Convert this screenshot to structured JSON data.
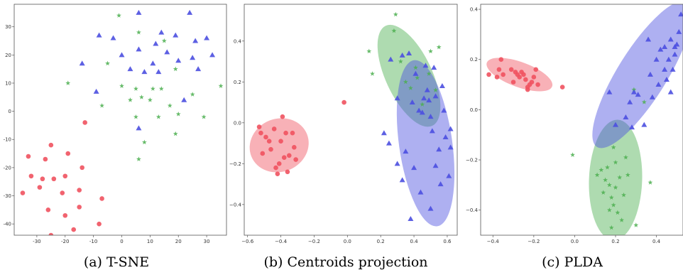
{
  "colors": {
    "red": "#f0525f",
    "green": "#4caf50",
    "blue": "#4b4fe0"
  },
  "chart_data": [
    {
      "type": "scatter",
      "caption": "(a) T-SNE",
      "xlim": [
        -38,
        37
      ],
      "ylim": [
        -44,
        38
      ],
      "xticks": [
        -30,
        -20,
        -10,
        0,
        10,
        20,
        30
      ],
      "yticks": [
        -40,
        -30,
        -20,
        -10,
        0,
        10,
        20,
        30
      ],
      "ellipses": [],
      "series": [
        {
          "marker": "circle",
          "color": "red",
          "points": [
            [
              -35,
              -29
            ],
            [
              -33,
              -16
            ],
            [
              -32,
              -23
            ],
            [
              -29,
              -27
            ],
            [
              -28,
              -24
            ],
            [
              -27,
              -17
            ],
            [
              -26,
              -35
            ],
            [
              -25,
              -12
            ],
            [
              -25,
              -44
            ],
            [
              -24,
              -24
            ],
            [
              -21,
              -29
            ],
            [
              -20,
              -23
            ],
            [
              -20,
              -37
            ],
            [
              -19,
              -15
            ],
            [
              -17,
              -42
            ],
            [
              -15,
              -34
            ],
            [
              -15,
              -28
            ],
            [
              -14,
              -20
            ],
            [
              -8,
              -40
            ],
            [
              -7,
              -31
            ],
            [
              -13,
              -4
            ]
          ]
        },
        {
          "marker": "star",
          "color": "green",
          "points": [
            [
              -19,
              10
            ],
            [
              -7,
              2
            ],
            [
              -5,
              17
            ],
            [
              -1,
              34
            ],
            [
              0,
              9
            ],
            [
              3,
              4
            ],
            [
              5,
              8
            ],
            [
              5,
              -2
            ],
            [
              6,
              28
            ],
            [
              6,
              -17
            ],
            [
              7,
              5
            ],
            [
              8,
              -11
            ],
            [
              10,
              4
            ],
            [
              11,
              8
            ],
            [
              13,
              -2
            ],
            [
              14,
              8
            ],
            [
              15,
              25
            ],
            [
              17,
              2
            ],
            [
              19,
              15
            ],
            [
              19,
              -8
            ],
            [
              20,
              -1
            ],
            [
              25,
              6
            ],
            [
              29,
              -2
            ],
            [
              35,
              9
            ]
          ]
        },
        {
          "marker": "triangle",
          "color": "blue",
          "points": [
            [
              -14,
              17
            ],
            [
              -9,
              7
            ],
            [
              -8,
              27
            ],
            [
              -3,
              26
            ],
            [
              0,
              20
            ],
            [
              3,
              15
            ],
            [
              6,
              35
            ],
            [
              6,
              22
            ],
            [
              6,
              -6
            ],
            [
              8,
              14
            ],
            [
              11,
              17
            ],
            [
              12,
              24
            ],
            [
              13,
              14
            ],
            [
              14,
              28
            ],
            [
              16,
              21
            ],
            [
              19,
              27
            ],
            [
              20,
              18
            ],
            [
              22,
              4
            ],
            [
              24,
              35
            ],
            [
              25,
              19
            ],
            [
              26,
              25
            ],
            [
              27,
              15
            ],
            [
              30,
              26
            ],
            [
              32,
              20
            ]
          ]
        }
      ]
    },
    {
      "type": "scatter",
      "caption": "(b) Centroids projection",
      "xlim": [
        -0.62,
        0.66
      ],
      "ylim": [
        -0.55,
        0.58
      ],
      "xticks": [
        -0.6,
        -0.4,
        -0.2,
        0.0,
        0.2,
        0.4,
        0.6
      ],
      "xtick_labels": [
        "−0.6",
        "−0.4",
        "−0.2",
        "0.0",
        "0.2",
        "0.4",
        "0.6"
      ],
      "yticks": [
        -0.4,
        -0.2,
        0.0,
        0.2,
        0.4
      ],
      "ytick_labels": [
        "−0.4",
        "−0.2",
        "0.0",
        "0.2",
        "0.4"
      ],
      "ellipses": [
        {
          "color": "red",
          "cx": -0.41,
          "cy": -0.11,
          "rx": 0.18,
          "ry": 0.13,
          "angle": 22
        },
        {
          "color": "green",
          "cx": 0.37,
          "cy": 0.23,
          "rx": 0.14,
          "ry": 0.27,
          "angle": 25
        },
        {
          "color": "blue",
          "cx": 0.47,
          "cy": -0.1,
          "rx": 0.16,
          "ry": 0.41,
          "angle": 8
        }
      ],
      "series": [
        {
          "marker": "circle",
          "color": "red",
          "points": [
            [
              -0.53,
              -0.02
            ],
            [
              -0.52,
              -0.05
            ],
            [
              -0.51,
              -0.15
            ],
            [
              -0.49,
              -0.07
            ],
            [
              -0.47,
              -0.09
            ],
            [
              -0.46,
              -0.13
            ],
            [
              -0.44,
              -0.03
            ],
            [
              -0.43,
              -0.22
            ],
            [
              -0.42,
              -0.25
            ],
            [
              -0.41,
              -0.2
            ],
            [
              -0.4,
              -0.09
            ],
            [
              -0.39,
              0.03
            ],
            [
              -0.38,
              -0.17
            ],
            [
              -0.37,
              -0.05
            ],
            [
              -0.36,
              -0.24
            ],
            [
              -0.35,
              -0.16
            ],
            [
              -0.33,
              -0.05
            ],
            [
              -0.32,
              -0.12
            ],
            [
              -0.31,
              -0.18
            ],
            [
              -0.02,
              0.1
            ]
          ]
        },
        {
          "marker": "star",
          "color": "green",
          "points": [
            [
              0.13,
              0.35
            ],
            [
              0.15,
              0.24
            ],
            [
              0.28,
              0.45
            ],
            [
              0.29,
              0.53
            ],
            [
              0.32,
              0.3
            ],
            [
              0.35,
              0.2
            ],
            [
              0.38,
              0.17
            ],
            [
              0.41,
              0.27
            ],
            [
              0.42,
              0.22
            ],
            [
              0.45,
              0.09
            ],
            [
              0.49,
              0.24
            ],
            [
              0.5,
              0.35
            ],
            [
              0.53,
              0.16
            ],
            [
              0.55,
              0.37
            ]
          ]
        },
        {
          "marker": "triangle",
          "color": "blue",
          "points": [
            [
              0.22,
              -0.05
            ],
            [
              0.26,
              0.31
            ],
            [
              0.3,
              0.12
            ],
            [
              0.33,
              0.33
            ],
            [
              0.37,
              0.34
            ],
            [
              0.39,
              0.1
            ],
            [
              0.41,
              0.24
            ],
            [
              0.43,
              0.06
            ],
            [
              0.45,
              0.05
            ],
            [
              0.46,
              0.12
            ],
            [
              0.47,
              0.28
            ],
            [
              0.48,
              0.16
            ],
            [
              0.49,
              0.11
            ],
            [
              0.5,
              0.03
            ],
            [
              0.51,
              -0.04
            ],
            [
              0.52,
              0.27
            ],
            [
              0.53,
              0.13
            ],
            [
              0.53,
              -0.21
            ],
            [
              0.55,
              -0.13
            ],
            [
              0.56,
              -0.3
            ],
            [
              0.57,
              0.18
            ],
            [
              0.58,
              0.06
            ],
            [
              0.59,
              -0.07
            ],
            [
              0.61,
              -0.26
            ],
            [
              0.62,
              -0.12
            ],
            [
              0.62,
              -0.03
            ],
            [
              0.44,
              -0.34
            ],
            [
              0.4,
              -0.22
            ],
            [
              0.35,
              -0.14
            ],
            [
              0.38,
              -0.47
            ],
            [
              0.3,
              -0.2
            ],
            [
              0.25,
              -0.1
            ],
            [
              0.33,
              -0.28
            ],
            [
              0.5,
              -0.42
            ]
          ]
        }
      ]
    },
    {
      "type": "scatter",
      "caption": "(c) PLDA",
      "xlim": [
        -0.46,
        0.53
      ],
      "ylim": [
        -0.5,
        0.42
      ],
      "xticks": [
        -0.4,
        -0.2,
        0.0,
        0.2,
        0.4
      ],
      "xtick_labels": [
        "−0.4",
        "−0.2",
        "0.0",
        "0.2",
        "0.4"
      ],
      "yticks": [
        -0.4,
        -0.2,
        0.0,
        0.2,
        0.4
      ],
      "ytick_labels": [
        "−0.4",
        "−0.2",
        "0.0",
        "0.2",
        "0.4"
      ],
      "ellipses": [
        {
          "color": "red",
          "cx": -0.27,
          "cy": 0.14,
          "rx": 0.17,
          "ry": 0.05,
          "angle": -20
        },
        {
          "color": "green",
          "cx": 0.2,
          "cy": -0.28,
          "rx": 0.13,
          "ry": 0.24,
          "angle": -2
        },
        {
          "color": "blue",
          "cx": 0.33,
          "cy": 0.14,
          "rx": 0.12,
          "ry": 0.34,
          "angle": -32
        }
      ],
      "series": [
        {
          "marker": "circle",
          "color": "red",
          "points": [
            [
              -0.42,
              0.14
            ],
            [
              -0.38,
              0.13
            ],
            [
              -0.37,
              0.16
            ],
            [
              -0.36,
              0.2
            ],
            [
              -0.35,
              0.14
            ],
            [
              -0.31,
              0.16
            ],
            [
              -0.3,
              0.11
            ],
            [
              -0.29,
              0.15
            ],
            [
              -0.28,
              0.14
            ],
            [
              -0.27,
              0.13
            ],
            [
              -0.26,
              0.15
            ],
            [
              -0.25,
              0.14
            ],
            [
              -0.24,
              0.12
            ],
            [
              -0.23,
              0.09
            ],
            [
              -0.23,
              0.08
            ],
            [
              -0.22,
              0.1
            ],
            [
              -0.21,
              0.11
            ],
            [
              -0.2,
              0.13
            ],
            [
              -0.19,
              0.16
            ],
            [
              -0.18,
              0.1
            ],
            [
              -0.06,
              0.09
            ]
          ]
        },
        {
          "marker": "star",
          "color": "green",
          "points": [
            [
              -0.01,
              -0.18
            ],
            [
              0.11,
              -0.26
            ],
            [
              0.13,
              -0.24
            ],
            [
              0.14,
              -0.33
            ],
            [
              0.15,
              -0.28
            ],
            [
              0.16,
              -0.23
            ],
            [
              0.17,
              -0.3
            ],
            [
              0.17,
              -0.4
            ],
            [
              0.18,
              -0.35
            ],
            [
              0.18,
              -0.47
            ],
            [
              0.19,
              -0.15
            ],
            [
              0.19,
              -0.38
            ],
            [
              0.2,
              -0.21
            ],
            [
              0.2,
              -0.31
            ],
            [
              0.21,
              -0.41
            ],
            [
              0.22,
              -0.27
            ],
            [
              0.23,
              -0.44
            ],
            [
              0.24,
              -0.34
            ],
            [
              0.25,
              -0.19
            ],
            [
              0.26,
              -0.26
            ],
            [
              0.3,
              -0.46
            ],
            [
              0.29,
              0.08
            ],
            [
              0.34,
              0.03
            ],
            [
              0.37,
              -0.29
            ]
          ]
        },
        {
          "marker": "triangle",
          "color": "blue",
          "points": [
            [
              0.17,
              0.07
            ],
            [
              0.2,
              -0.06
            ],
            [
              0.25,
              -0.03
            ],
            [
              0.27,
              0.03
            ],
            [
              0.28,
              -0.07
            ],
            [
              0.29,
              0.07
            ],
            [
              0.31,
              0.06
            ],
            [
              0.34,
              -0.06
            ],
            [
              0.36,
              0.28
            ],
            [
              0.37,
              0.14
            ],
            [
              0.38,
              0.05
            ],
            [
              0.4,
              0.2
            ],
            [
              0.41,
              0.1
            ],
            [
              0.42,
              0.24
            ],
            [
              0.44,
              0.25
            ],
            [
              0.45,
              0.12
            ],
            [
              0.46,
              0.2
            ],
            [
              0.47,
              0.28
            ],
            [
              0.48,
              0.16
            ],
            [
              0.49,
              0.22
            ],
            [
              0.49,
              0.25
            ],
            [
              0.5,
              0.26
            ],
            [
              0.51,
              0.31
            ],
            [
              0.52,
              0.38
            ],
            [
              0.47,
              0.07
            ],
            [
              0.44,
              0.16
            ]
          ]
        }
      ]
    }
  ]
}
